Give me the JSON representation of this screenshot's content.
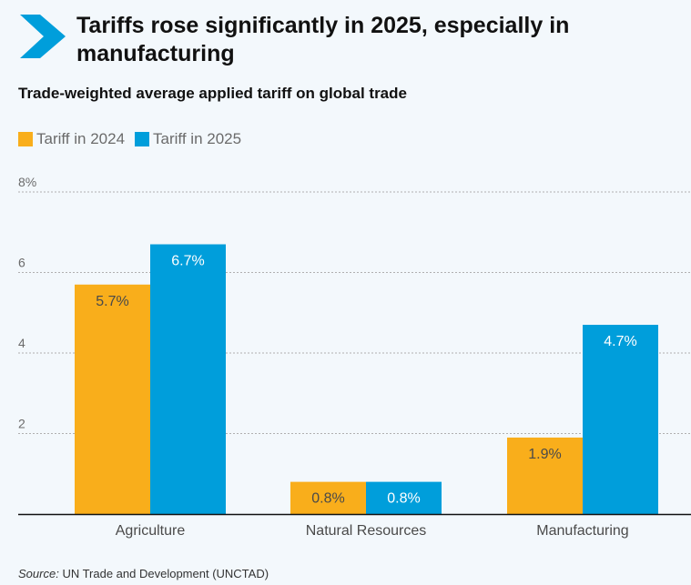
{
  "header": {
    "title": "Tariffs rose significantly in 2025, especially in manufacturing",
    "subtitle": "Trade-weighted average applied tariff on global trade"
  },
  "legend": [
    {
      "label": "Tariff in 2024",
      "color": "#f9ae1b"
    },
    {
      "label": "Tariff in 2025",
      "color": "#009edb"
    }
  ],
  "source": {
    "label": "Source:",
    "text": "UN Trade and Development (UNCTAD)"
  },
  "colors": {
    "accent": "#009edb",
    "orange": "#f9ae1b",
    "blue": "#009edb"
  },
  "chart_data": {
    "type": "bar",
    "title": "Trade-weighted average applied tariff on global trade",
    "xlabel": "",
    "ylabel": "",
    "categories": [
      "Agriculture",
      "Natural Resources",
      "Manufacturing"
    ],
    "series": [
      {
        "name": "Tariff in 2024",
        "values": [
          5.7,
          0.8,
          1.9
        ],
        "labels": [
          "5.7%",
          "0.8%",
          "1.9%"
        ]
      },
      {
        "name": "Tariff in 2025",
        "values": [
          6.7,
          0.8,
          4.7
        ],
        "labels": [
          "6.7%",
          "0.8%",
          "4.7%"
        ]
      }
    ],
    "ylim": [
      0,
      8
    ],
    "yticks": [
      2,
      4,
      6,
      8
    ],
    "ytick_labels": [
      "2",
      "4",
      "6",
      "8%"
    ],
    "grid": true,
    "legend_position": "top-left"
  }
}
